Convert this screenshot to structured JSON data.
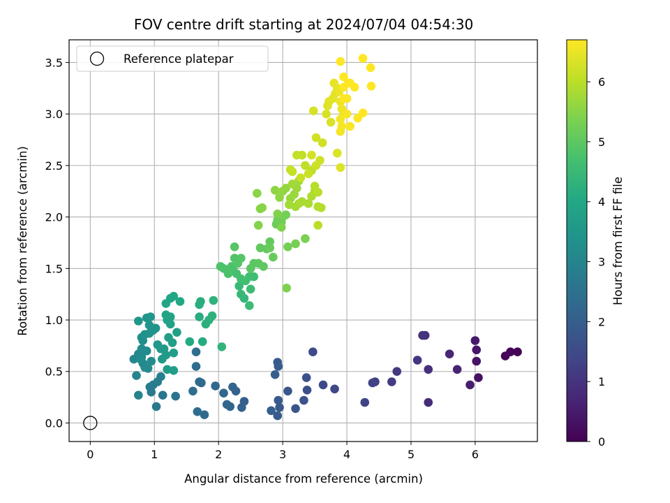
{
  "chart_data": {
    "type": "scatter",
    "title": "FOV centre drift starting at 2024/07/04 04:54:30",
    "xlabel": "Angular distance from reference (arcmin)",
    "ylabel": "Rotation from reference (arcmin)",
    "xlim": [
      -0.33,
      6.97
    ],
    "ylim": [
      -0.18,
      3.72
    ],
    "xticks": [
      0,
      1,
      2,
      3,
      4,
      5,
      6
    ],
    "yticks": [
      0.0,
      0.5,
      1.0,
      1.5,
      2.0,
      2.5,
      3.0,
      3.5
    ],
    "ytick_labels": [
      "0.0",
      "0.5",
      "1.0",
      "1.5",
      "2.0",
      "2.5",
      "3.0",
      "3.5"
    ],
    "grid": true,
    "colormap": "viridis",
    "colorbar": {
      "label": "Hours from first FF file",
      "range": [
        0,
        6.7
      ],
      "ticks": [
        0,
        1,
        2,
        3,
        4,
        5,
        6
      ]
    },
    "legend": {
      "placement": "top-left",
      "entries": [
        {
          "label": "Reference platepar",
          "marker": "open-circle"
        }
      ]
    },
    "reference_point": {
      "x": 0,
      "y": 0
    },
    "points": [
      [
        6.66,
        0.69,
        0.03
      ],
      [
        6.55,
        0.69,
        0.08
      ],
      [
        6.47,
        0.65,
        0.12
      ],
      [
        6.05,
        0.44,
        0.3
      ],
      [
        6.02,
        0.6,
        0.35
      ],
      [
        6.02,
        0.71,
        0.4
      ],
      [
        6.0,
        0.8,
        0.45
      ],
      [
        5.92,
        0.37,
        0.55
      ],
      [
        5.72,
        0.52,
        0.65
      ],
      [
        5.6,
        0.67,
        0.72
      ],
      [
        5.27,
        0.2,
        0.85
      ],
      [
        5.27,
        0.52,
        0.9
      ],
      [
        5.22,
        0.85,
        0.95
      ],
      [
        5.18,
        0.85,
        1.0
      ],
      [
        5.1,
        0.61,
        1.05
      ],
      [
        4.78,
        0.5,
        1.12
      ],
      [
        4.7,
        0.4,
        1.18
      ],
      [
        4.44,
        0.4,
        1.25
      ],
      [
        4.4,
        0.39,
        1.3
      ],
      [
        4.28,
        0.2,
        1.35
      ],
      [
        3.81,
        0.33,
        1.45
      ],
      [
        3.63,
        0.37,
        1.5
      ],
      [
        3.47,
        0.69,
        1.55
      ],
      [
        3.38,
        0.32,
        1.6
      ],
      [
        3.37,
        0.44,
        1.65
      ],
      [
        3.33,
        0.22,
        1.7
      ],
      [
        3.2,
        0.14,
        1.75
      ],
      [
        3.08,
        0.31,
        1.8
      ],
      [
        2.95,
        0.15,
        1.85
      ],
      [
        2.93,
        0.22,
        1.88
      ],
      [
        2.92,
        0.59,
        1.9
      ],
      [
        2.92,
        0.07,
        1.92
      ],
      [
        2.93,
        0.55,
        1.95
      ],
      [
        2.88,
        0.47,
        1.98
      ],
      [
        2.82,
        0.12,
        2.0
      ],
      [
        2.4,
        0.21,
        2.05
      ],
      [
        2.36,
        0.15,
        2.1
      ],
      [
        2.27,
        0.31,
        2.12
      ],
      [
        2.22,
        0.35,
        2.15
      ],
      [
        2.18,
        0.16,
        2.18
      ],
      [
        2.13,
        0.18,
        2.2
      ],
      [
        2.08,
        0.29,
        2.22
      ],
      [
        1.95,
        0.36,
        2.25
      ],
      [
        1.78,
        0.08,
        2.28
      ],
      [
        1.73,
        0.39,
        2.3
      ],
      [
        1.7,
        0.4,
        2.32
      ],
      [
        1.67,
        0.11,
        2.35
      ],
      [
        1.65,
        0.55,
        2.38
      ],
      [
        1.6,
        0.31,
        2.4
      ],
      [
        1.65,
        0.69,
        2.45
      ],
      [
        1.33,
        0.26,
        2.55
      ],
      [
        1.13,
        0.27,
        2.6
      ],
      [
        1.03,
        0.16,
        2.65
      ],
      [
        0.95,
        0.3,
        2.7
      ],
      [
        0.93,
        0.35,
        2.75
      ],
      [
        0.98,
        0.37,
        2.8
      ],
      [
        1.05,
        0.4,
        2.85
      ],
      [
        1.1,
        0.45,
        2.9
      ],
      [
        0.75,
        0.27,
        2.95
      ],
      [
        0.72,
        0.46,
        3.0
      ],
      [
        0.68,
        0.62,
        3.05
      ],
      [
        0.75,
        0.67,
        3.08
      ],
      [
        0.8,
        0.64,
        3.1
      ],
      [
        0.82,
        0.58,
        3.12
      ],
      [
        0.85,
        0.54,
        3.15
      ],
      [
        0.9,
        0.53,
        3.18
      ],
      [
        0.95,
        0.6,
        3.2
      ],
      [
        0.88,
        0.7,
        3.22
      ],
      [
        0.8,
        0.72,
        3.25
      ],
      [
        0.78,
        0.62,
        3.28
      ],
      [
        0.82,
        0.8,
        3.3
      ],
      [
        0.8,
        0.83,
        3.32
      ],
      [
        0.85,
        0.86,
        3.35
      ],
      [
        0.92,
        0.87,
        3.38
      ],
      [
        0.98,
        0.9,
        3.4
      ],
      [
        1.02,
        0.92,
        3.42
      ],
      [
        0.92,
        0.95,
        3.45
      ],
      [
        0.88,
        1.02,
        3.48
      ],
      [
        0.94,
        1.03,
        3.5
      ],
      [
        0.75,
        0.99,
        3.52
      ],
      [
        1.05,
        0.76,
        3.55
      ],
      [
        1.1,
        0.72,
        3.58
      ],
      [
        1.12,
        0.62,
        3.6
      ],
      [
        1.18,
        0.66,
        3.62
      ],
      [
        1.15,
        0.72,
        3.65
      ],
      [
        1.2,
        0.52,
        3.68
      ],
      [
        1.3,
        0.51,
        3.7
      ],
      [
        1.3,
        0.68,
        3.72
      ],
      [
        1.28,
        0.78,
        3.75
      ],
      [
        1.22,
        0.83,
        3.78
      ],
      [
        1.35,
        0.88,
        3.8
      ],
      [
        1.25,
        0.96,
        3.82
      ],
      [
        1.2,
        1.0,
        3.85
      ],
      [
        1.25,
        1.03,
        3.88
      ],
      [
        1.18,
        1.05,
        3.9
      ],
      [
        1.18,
        1.16,
        3.92
      ],
      [
        1.25,
        1.21,
        3.95
      ],
      [
        1.3,
        1.23,
        3.98
      ],
      [
        1.4,
        1.18,
        4.0
      ],
      [
        1.55,
        0.79,
        4.05
      ],
      [
        1.75,
        0.79,
        4.1
      ],
      [
        1.7,
        1.03,
        4.15
      ],
      [
        1.7,
        1.15,
        4.18
      ],
      [
        1.72,
        1.18,
        4.2
      ],
      [
        1.8,
        0.96,
        4.22
      ],
      [
        1.85,
        1.0,
        4.25
      ],
      [
        1.9,
        1.04,
        4.28
      ],
      [
        1.92,
        1.19,
        4.3
      ],
      [
        2.05,
        0.74,
        4.35
      ],
      [
        2.4,
        1.21,
        4.4
      ],
      [
        2.35,
        1.25,
        4.45
      ],
      [
        2.32,
        1.33,
        4.5
      ],
      [
        2.48,
        1.14,
        4.55
      ],
      [
        2.5,
        1.3,
        4.58
      ],
      [
        2.55,
        1.42,
        4.6
      ],
      [
        2.48,
        1.42,
        4.62
      ],
      [
        2.42,
        1.38,
        4.65
      ],
      [
        2.35,
        1.4,
        4.68
      ],
      [
        2.28,
        1.45,
        4.7
      ],
      [
        2.22,
        1.5,
        4.72
      ],
      [
        2.15,
        1.45,
        4.75
      ],
      [
        2.08,
        1.5,
        4.78
      ],
      [
        2.03,
        1.52,
        4.8
      ],
      [
        2.2,
        1.52,
        4.82
      ],
      [
        2.25,
        1.6,
        4.85
      ],
      [
        2.3,
        1.55,
        4.88
      ],
      [
        2.35,
        1.6,
        4.9
      ],
      [
        2.25,
        1.71,
        4.92
      ],
      [
        2.5,
        1.5,
        4.95
      ],
      [
        2.55,
        1.55,
        4.98
      ],
      [
        2.62,
        1.55,
        5.0
      ],
      [
        2.7,
        1.52,
        5.02
      ],
      [
        2.65,
        1.7,
        5.05
      ],
      [
        2.75,
        1.69,
        5.08
      ],
      [
        2.8,
        1.76,
        5.1
      ],
      [
        2.85,
        1.61,
        5.12
      ],
      [
        2.8,
        1.7,
        5.15
      ],
      [
        2.9,
        1.93,
        5.18
      ],
      [
        2.92,
        1.97,
        5.2
      ],
      [
        2.98,
        1.95,
        5.22
      ],
      [
        3.0,
        2.0,
        5.25
      ],
      [
        3.05,
        2.02,
        5.28
      ],
      [
        3.08,
        1.71,
        5.3
      ],
      [
        3.2,
        1.74,
        5.32
      ],
      [
        3.35,
        1.79,
        5.35
      ],
      [
        3.06,
        1.31,
        5.38
      ],
      [
        2.98,
        1.9,
        5.4
      ],
      [
        2.92,
        2.03,
        5.42
      ],
      [
        2.62,
        1.92,
        5.45
      ],
      [
        2.65,
        2.08,
        5.48
      ],
      [
        2.68,
        2.09,
        5.5
      ],
      [
        2.6,
        2.23,
        5.52
      ],
      [
        2.88,
        2.26,
        5.55
      ],
      [
        2.95,
        2.19,
        5.58
      ],
      [
        3.0,
        2.25,
        5.6
      ],
      [
        3.05,
        2.28,
        5.62
      ],
      [
        3.12,
        2.18,
        5.65
      ],
      [
        3.18,
        2.22,
        5.68
      ],
      [
        3.22,
        2.28,
        5.7
      ],
      [
        3.25,
        2.35,
        5.72
      ],
      [
        3.15,
        2.32,
        5.75
      ],
      [
        3.1,
        2.12,
        5.78
      ],
      [
        3.2,
        2.1,
        5.8
      ],
      [
        3.25,
        2.13,
        5.82
      ],
      [
        3.3,
        2.15,
        5.84
      ],
      [
        3.4,
        2.13,
        5.86
      ],
      [
        3.45,
        2.2,
        5.88
      ],
      [
        3.5,
        2.25,
        5.9
      ],
      [
        3.55,
        2.1,
        5.92
      ],
      [
        3.6,
        2.09,
        5.94
      ],
      [
        3.55,
        2.24,
        5.96
      ],
      [
        3.5,
        2.3,
        5.98
      ],
      [
        3.55,
        1.92,
        6.0
      ],
      [
        3.45,
        2.45,
        6.02
      ],
      [
        3.35,
        2.5,
        6.04
      ],
      [
        3.3,
        2.6,
        6.06
      ],
      [
        3.22,
        2.6,
        6.08
      ],
      [
        3.15,
        2.44,
        6.1
      ],
      [
        3.12,
        2.46,
        6.12
      ],
      [
        3.28,
        2.38,
        6.14
      ],
      [
        3.4,
        2.42,
        6.16
      ],
      [
        3.52,
        2.5,
        6.18
      ],
      [
        3.58,
        2.55,
        6.2
      ],
      [
        3.62,
        2.72,
        6.22
      ],
      [
        3.52,
        2.77,
        6.24
      ],
      [
        3.45,
        2.6,
        6.26
      ],
      [
        3.48,
        3.03,
        6.28
      ],
      [
        3.68,
        3.0,
        6.3
      ],
      [
        3.75,
        2.92,
        6.32
      ],
      [
        3.85,
        2.62,
        6.34
      ],
      [
        3.9,
        2.48,
        6.36
      ],
      [
        3.7,
        3.08,
        6.38
      ],
      [
        3.72,
        3.12,
        6.4
      ],
      [
        3.78,
        3.15,
        6.42
      ],
      [
        3.82,
        3.2,
        6.44
      ],
      [
        3.8,
        3.3,
        6.46
      ],
      [
        3.85,
        3.25,
        6.48
      ],
      [
        3.88,
        3.22,
        6.5
      ],
      [
        3.9,
        3.12,
        6.52
      ],
      [
        3.92,
        3.05,
        6.54
      ],
      [
        3.95,
        3.0,
        6.56
      ],
      [
        3.9,
        2.95,
        6.58
      ],
      [
        3.9,
        2.83,
        6.6
      ],
      [
        3.92,
        2.88,
        6.62
      ],
      [
        4.0,
        3.0,
        6.64
      ],
      [
        4.05,
        2.88,
        6.66
      ],
      [
        4.0,
        3.15,
        6.68
      ],
      [
        3.95,
        3.26,
        6.69
      ],
      [
        4.02,
        3.3,
        6.7
      ],
      [
        4.05,
        3.3,
        6.7
      ],
      [
        4.12,
        3.26,
        6.7
      ],
      [
        4.17,
        2.96,
        6.7
      ],
      [
        4.25,
        3.01,
        6.7
      ],
      [
        3.95,
        3.36,
        6.7
      ],
      [
        3.9,
        3.51,
        6.7
      ],
      [
        4.25,
        3.54,
        6.7
      ],
      [
        4.37,
        3.45,
        6.7
      ],
      [
        4.38,
        3.27,
        6.7
      ],
      [
        3.95,
        3.15,
        6.7
      ]
    ]
  }
}
